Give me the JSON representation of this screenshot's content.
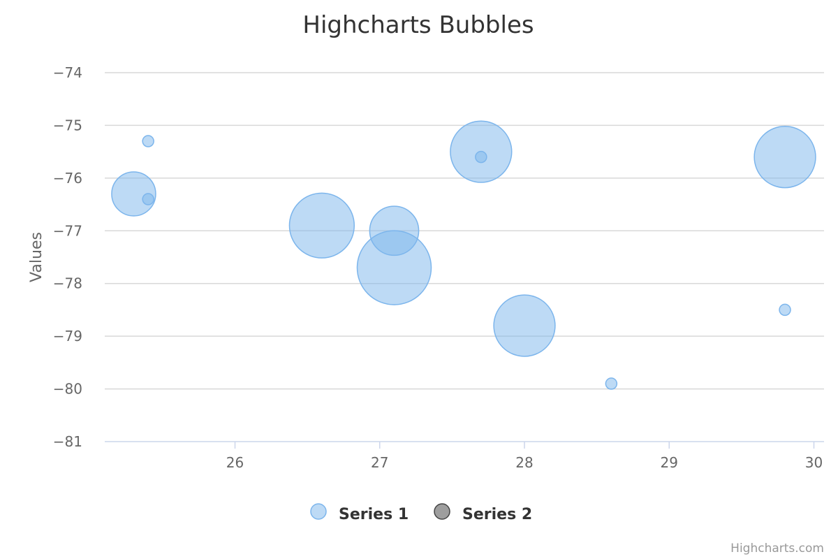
{
  "chart_data": {
    "type": "scatter",
    "subtype": "bubble",
    "title": "Highcharts Bubbles",
    "ylabel": "Values",
    "xlabel": "",
    "xlim": [
      25.1,
      30.07
    ],
    "ylim": [
      -81,
      -74
    ],
    "x_ticks": [
      "26",
      "27",
      "28",
      "29",
      "30"
    ],
    "y_ticks": [
      "−74",
      "−75",
      "−76",
      "−77",
      "−78",
      "−79",
      "−80",
      "−81"
    ],
    "grid": true,
    "legend_position": "bottom-center",
    "colors": {
      "series1_fill": "rgba(124,181,236,0.5)",
      "series1_stroke": "#7cb5ec",
      "series2_fill": "#9e9e9e",
      "series2_stroke": "#444444"
    },
    "series": [
      {
        "name": "Series 1",
        "points": [
          {
            "x": 25.3,
            "y": -76.3,
            "z": 4
          },
          {
            "x": 25.4,
            "y": -75.3,
            "z": 1
          },
          {
            "x": 25.4,
            "y": -76.4,
            "z": 1
          },
          {
            "x": 26.6,
            "y": -76.9,
            "z": 9
          },
          {
            "x": 27.1,
            "y": -77.0,
            "z": 5
          },
          {
            "x": 27.1,
            "y": -77.7,
            "z": 12
          },
          {
            "x": 27.7,
            "y": -75.5,
            "z": 8
          },
          {
            "x": 27.7,
            "y": -75.6,
            "z": 1
          },
          {
            "x": 28.0,
            "y": -78.8,
            "z": 8
          },
          {
            "x": 28.6,
            "y": -79.9,
            "z": 1
          },
          {
            "x": 29.8,
            "y": -75.6,
            "z": 8
          },
          {
            "x": 29.8,
            "y": -78.5,
            "z": 1
          }
        ]
      },
      {
        "name": "Series 2",
        "points": []
      }
    ]
  },
  "credits": "Highcharts.com"
}
